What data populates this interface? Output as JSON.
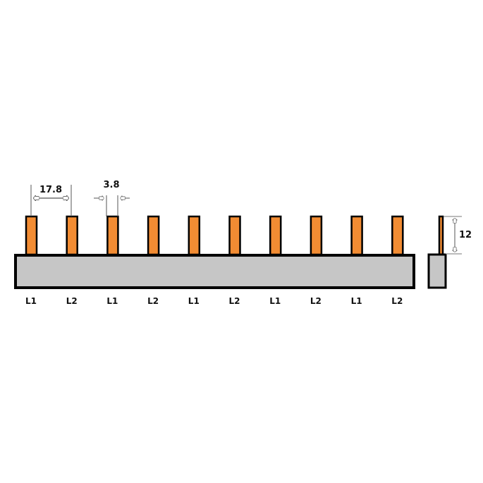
{
  "dimensions": {
    "pitch": "17.8",
    "pin_width": "3.8",
    "pin_height": "12"
  },
  "phase_labels": [
    "L1",
    "L2",
    "L1",
    "L2",
    "L1",
    "L2",
    "L1",
    "L2",
    "L1",
    "L2"
  ],
  "colors": {
    "pin": "#f28c33",
    "bar": "#c6c6c6",
    "outline": "#000000",
    "dimension_line": "#555555"
  }
}
